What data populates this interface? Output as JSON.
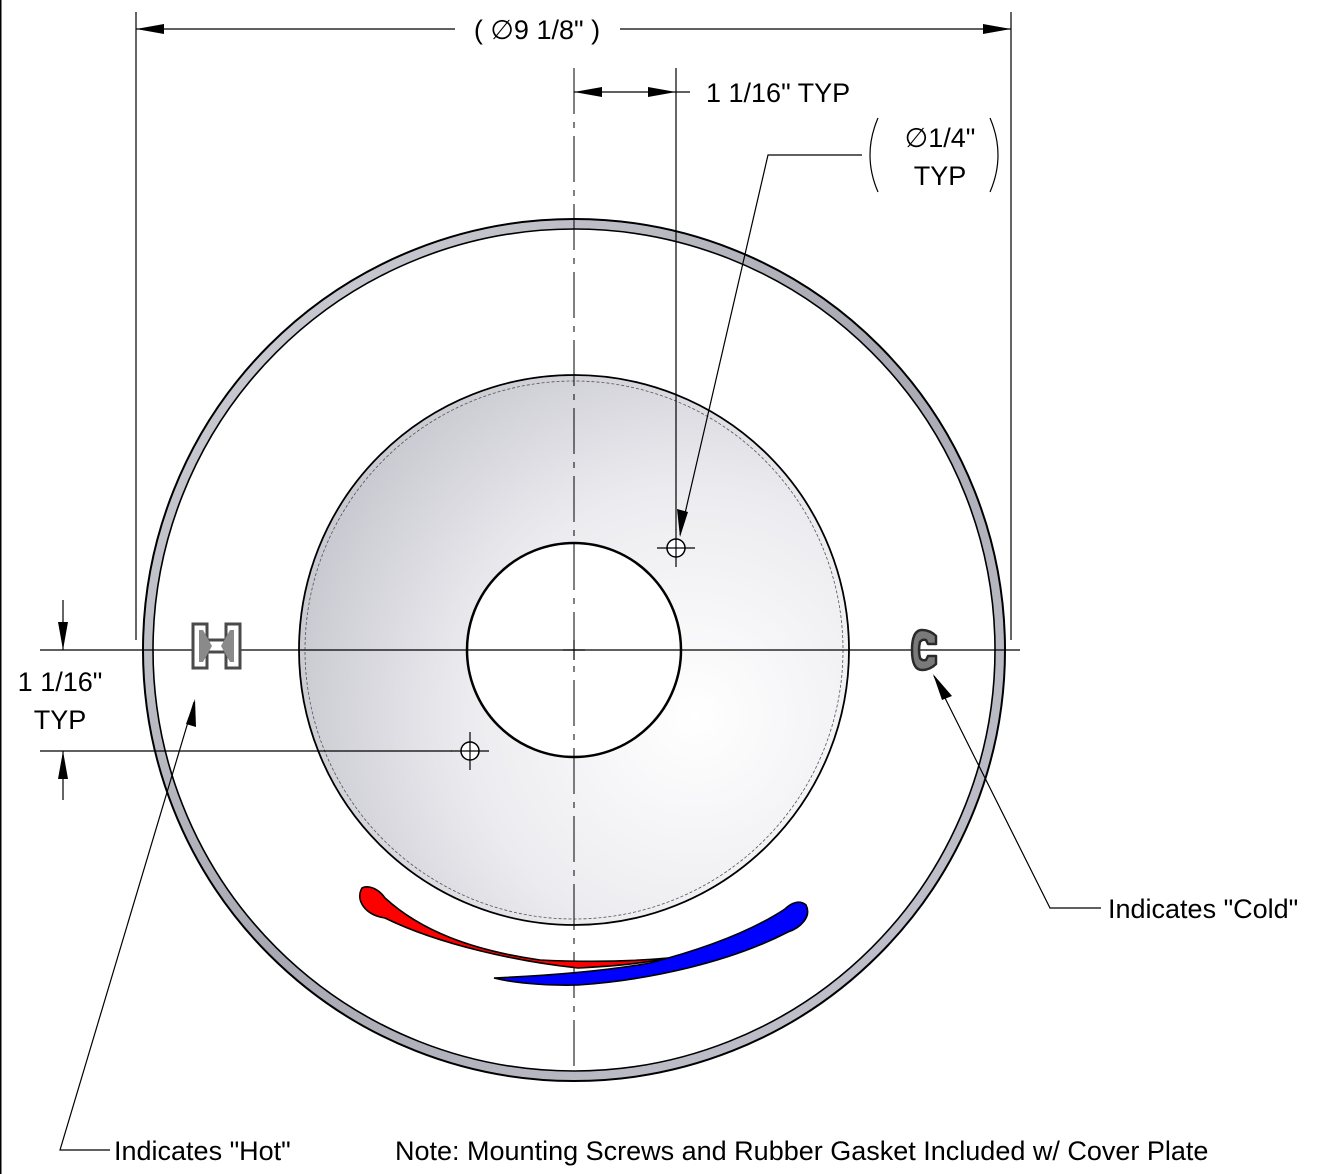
{
  "dimensions": {
    "overall_diameter": "( ∅9 1/8\" )",
    "offset_horizontal": "1 1/16\" TYP",
    "offset_vertical_line1": "1 1/16\"",
    "offset_vertical_line2": "TYP",
    "hole_diameter_line1": "∅1/4\"",
    "hole_diameter_line2": "TYP"
  },
  "callouts": {
    "hot": "Indicates \"Hot\"",
    "cold": "Indicates \"Cold\""
  },
  "symbols": {
    "hot_letter": "H",
    "cold_letter": "C"
  },
  "note": "Note: Mounting Screws and Rubber Gasket Included w/ Cover Plate",
  "colors": {
    "hot": "#ff0000",
    "cold": "#0000ff",
    "plate_edge": "#b0b0b8",
    "symbol": "#6a6a6a"
  }
}
